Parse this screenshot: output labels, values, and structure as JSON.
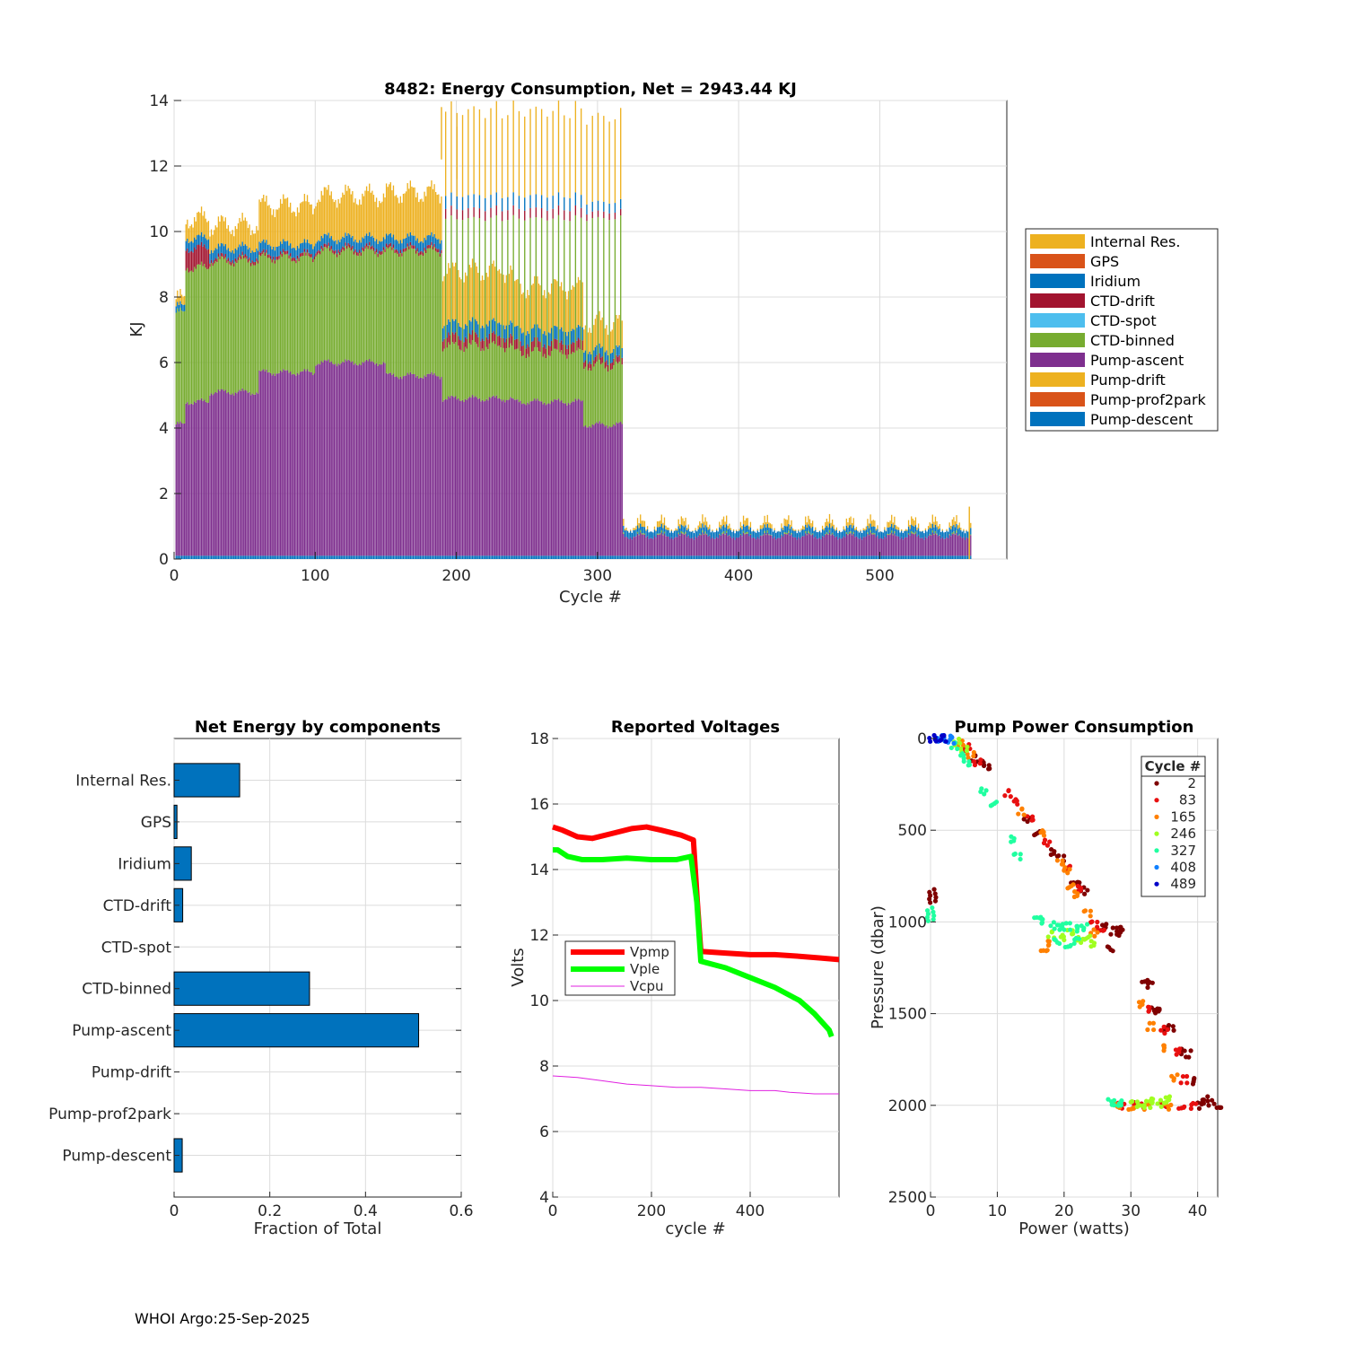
{
  "footer": "WHOI Argo:25-Sep-2025",
  "colors": {
    "internal_res": "#EDB120",
    "gps": "#D95319",
    "iridium": "#0072BD",
    "ctd_drift": "#A2142F",
    "ctd_spot": "#4DBEEE",
    "ctd_binned": "#77AC30",
    "pump_ascent": "#7E2F8E",
    "pump_drift": "#EDB120",
    "pump_prof2park": "#D95319",
    "pump_descent": "#0072BD"
  },
  "chart_data": [
    {
      "id": "energy",
      "type": "bar",
      "stacked": true,
      "title": "8482: Energy Consumption,  Net = 2943.44 KJ",
      "xlabel": "Cycle #",
      "ylabel": "KJ",
      "xlim": [
        0,
        590
      ],
      "ylim": [
        0,
        14
      ],
      "xticks": [
        0,
        100,
        200,
        300,
        400,
        500
      ],
      "yticks": [
        0,
        2,
        4,
        6,
        8,
        10,
        12,
        14
      ],
      "grid": true,
      "legend_position": "outside-right",
      "legend": [
        "Internal Res.",
        "GPS",
        "Iridium",
        "CTD-drift",
        "CTD-spot",
        "CTD-binned",
        "Pump-ascent",
        "Pump-drift",
        "Pump-prof2park",
        "Pump-descent"
      ],
      "segments": [
        {
          "x": [
            1,
            8
          ],
          "pump_ascent": 4.0,
          "ctd_binned": 3.4,
          "ctd_drift": 0.0,
          "iridium": 0.2,
          "internal_res": 0.2
        },
        {
          "x": [
            8,
            25
          ],
          "pump_ascent": 4.7,
          "ctd_binned": 4.1,
          "ctd_drift": 0.6,
          "iridium": 0.3,
          "internal_res": 0.6
        },
        {
          "x": [
            25,
            60
          ],
          "pump_ascent": 5.0,
          "ctd_binned": 4.0,
          "ctd_drift": 0.1,
          "iridium": 0.3,
          "internal_res": 0.7
        },
        {
          "x": [
            60,
            100
          ],
          "pump_ascent": 5.6,
          "ctd_binned": 3.5,
          "ctd_drift": 0.1,
          "iridium": 0.3,
          "internal_res": 1.2
        },
        {
          "x": [
            100,
            150
          ],
          "pump_ascent": 5.9,
          "ctd_binned": 3.4,
          "ctd_drift": 0.1,
          "iridium": 0.3,
          "internal_res": 1.3
        },
        {
          "x": [
            150,
            190
          ],
          "pump_ascent": 5.5,
          "ctd_binned": 3.8,
          "ctd_drift": 0.1,
          "iridium": 0.3,
          "internal_res": 1.4
        },
        {
          "x": [
            190,
            240
          ],
          "pump_ascent": 4.8,
          "ctd_binned": 1.6,
          "ctd_drift": 0.3,
          "iridium": 0.4,
          "internal_res": 1.6
        },
        {
          "x": [
            240,
            290
          ],
          "pump_ascent": 4.7,
          "ctd_binned": 1.5,
          "ctd_drift": 0.3,
          "iridium": 0.4,
          "internal_res": 1.3
        },
        {
          "x": [
            290,
            318
          ],
          "pump_ascent": 4.0,
          "ctd_binned": 1.8,
          "ctd_drift": 0.2,
          "iridium": 0.3,
          "internal_res": 0.8
        },
        {
          "x": [
            318,
            565
          ],
          "pump_ascent": 0.6,
          "ctd_binned": 0.0,
          "ctd_drift": 0.0,
          "iridium": 0.2,
          "internal_res": 0.1
        }
      ],
      "pump_descent": 0.1,
      "alternate_cycles": {
        "x": [
          190,
          318
        ],
        "total": 10.5,
        "ctd_binned_total": 10.3
      },
      "peaks": [
        {
          "x": 189,
          "y": 13.8
        },
        {
          "x": 200,
          "y": 13.2
        },
        {
          "x": 563,
          "y": 1.6
        }
      ]
    },
    {
      "id": "components",
      "type": "bar",
      "orientation": "horizontal",
      "title": "Net Energy by components",
      "xlabel": "Fraction of Total",
      "xlim": [
        0,
        0.6
      ],
      "xticks": [
        0,
        0.2,
        0.4,
        0.6
      ],
      "xtick_labels": [
        "0",
        "0.2",
        "0.4",
        "0.6"
      ],
      "grid": true,
      "categories": [
        "Internal Res.",
        "GPS",
        "Iridium",
        "CTD-drift",
        "CTD-spot",
        "CTD-binned",
        "Pump-ascent",
        "Pump-drift",
        "Pump-prof2park",
        "Pump-descent"
      ],
      "values": [
        0.137,
        0.006,
        0.036,
        0.018,
        0.0,
        0.283,
        0.511,
        0.0,
        0.0,
        0.017
      ],
      "bar_color": "#0072BD"
    },
    {
      "id": "voltages",
      "type": "line",
      "title": "Reported Voltages",
      "xlabel": "cycle #",
      "ylabel": "Volts",
      "xlim": [
        0,
        580
      ],
      "ylim": [
        4,
        18
      ],
      "xticks": [
        0,
        200,
        400
      ],
      "yticks": [
        4,
        6,
        8,
        10,
        12,
        14,
        16,
        18
      ],
      "grid": true,
      "legend_position": "middle-left",
      "series": [
        {
          "name": "Vpmp",
          "color": "#FF0000",
          "width": 6,
          "x": [
            0,
            20,
            50,
            80,
            120,
            160,
            190,
            220,
            260,
            285,
            293,
            300,
            350,
            400,
            450,
            500,
            540,
            580
          ],
          "y": [
            15.3,
            15.2,
            15.0,
            14.95,
            15.1,
            15.25,
            15.3,
            15.2,
            15.05,
            14.9,
            13.0,
            11.5,
            11.45,
            11.4,
            11.4,
            11.35,
            11.3,
            11.25
          ]
        },
        {
          "name": "Vple",
          "color": "#00FF00",
          "width": 6,
          "x": [
            0,
            10,
            30,
            60,
            100,
            150,
            200,
            250,
            280,
            292,
            300,
            350,
            400,
            450,
            500,
            530,
            560,
            565
          ],
          "y": [
            14.6,
            14.6,
            14.4,
            14.3,
            14.3,
            14.35,
            14.3,
            14.3,
            14.4,
            13.0,
            11.2,
            11.0,
            10.7,
            10.4,
            10.0,
            9.6,
            9.1,
            8.9
          ]
        },
        {
          "name": "Vcpu",
          "color": "#E020E0",
          "width": 1,
          "x": [
            0,
            50,
            100,
            150,
            200,
            250,
            300,
            350,
            400,
            450,
            480,
            530,
            580
          ],
          "y": [
            7.7,
            7.65,
            7.55,
            7.45,
            7.4,
            7.35,
            7.35,
            7.3,
            7.25,
            7.25,
            7.2,
            7.15,
            7.15
          ]
        }
      ]
    },
    {
      "id": "pump",
      "type": "scatter",
      "title": "Pump Power Consumption",
      "xlabel": "Power (watts)",
      "ylabel": "Pressure (dbar)",
      "xlim": [
        0,
        43
      ],
      "ylim": [
        0,
        2500
      ],
      "y_reversed": true,
      "xticks": [
        0,
        10,
        20,
        30,
        40
      ],
      "yticks": [
        0,
        500,
        1000,
        1500,
        2000,
        2500
      ],
      "grid": true,
      "legend_title": "Cycle #",
      "legend_position": "top-right",
      "legend": [
        {
          "label": "2",
          "color": "#7F0000"
        },
        {
          "label": "83",
          "color": "#E81010"
        },
        {
          "label": "165",
          "color": "#FF8000"
        },
        {
          "label": "246",
          "color": "#A0FF20"
        },
        {
          "label": "327",
          "color": "#20FFA0"
        },
        {
          "label": "408",
          "color": "#1080FF"
        },
        {
          "label": "489",
          "color": "#0000C8"
        }
      ],
      "clusters": [
        {
          "color": "#7F0000",
          "points": [
            [
              0.3,
              840
            ],
            [
              0.3,
              880
            ],
            [
              6.5,
              110
            ],
            [
              7.5,
              140
            ],
            [
              8.5,
              160
            ],
            [
              14.5,
              440
            ],
            [
              16.0,
              510
            ],
            [
              18.5,
              620
            ],
            [
              19.5,
              650
            ],
            [
              21.5,
              770
            ],
            [
              22.5,
              800
            ],
            [
              23.0,
              830
            ],
            [
              26.0,
              1030
            ],
            [
              27.5,
              1050
            ],
            [
              28.0,
              1045
            ],
            [
              28.3,
              1060
            ],
            [
              27.0,
              1150
            ],
            [
              32.0,
              1310
            ],
            [
              33.0,
              1340
            ],
            [
              33.5,
              1480
            ],
            [
              34.0,
              1470
            ],
            [
              35.5,
              1590
            ],
            [
              36.0,
              1580
            ],
            [
              37.5,
              1710
            ],
            [
              38.5,
              1720
            ],
            [
              39.0,
              1870
            ],
            [
              41.0,
              1970
            ],
            [
              42.0,
              1990
            ],
            [
              43.0,
              1995
            ],
            [
              40.5,
              2000
            ]
          ]
        },
        {
          "color": "#E81010",
          "points": [
            [
              5.5,
              50
            ],
            [
              7.0,
              130
            ],
            [
              11.5,
              300
            ],
            [
              12.5,
              350
            ],
            [
              15.0,
              440
            ],
            [
              17.5,
              570
            ],
            [
              20.5,
              700
            ],
            [
              22.5,
              820
            ],
            [
              24.5,
              1010
            ],
            [
              25.5,
              1030
            ],
            [
              33.0,
              1480
            ],
            [
              35.0,
              1590
            ],
            [
              37.0,
              1710
            ],
            [
              38.0,
              1860
            ],
            [
              30.0,
              2000
            ],
            [
              32.0,
              2000
            ],
            [
              35.0,
              2000
            ],
            [
              37.5,
              2000
            ],
            [
              39.5,
              2000
            ],
            [
              28.5,
              2000
            ]
          ]
        },
        {
          "color": "#FF8000",
          "points": [
            [
              4.5,
              30
            ],
            [
              6.0,
              90
            ],
            [
              13.5,
              400
            ],
            [
              16.5,
              520
            ],
            [
              19.5,
              680
            ],
            [
              20.5,
              720
            ],
            [
              21.0,
              800
            ],
            [
              22.0,
              850
            ],
            [
              23.5,
              950
            ],
            [
              17.0,
              1140
            ],
            [
              18.0,
              1120
            ],
            [
              24.5,
              1060
            ],
            [
              31.5,
              1450
            ],
            [
              33.0,
              1570
            ],
            [
              34.5,
              1690
            ],
            [
              36.5,
              1850
            ],
            [
              28.0,
              2005
            ],
            [
              30.0,
              2005
            ],
            [
              32.5,
              2005
            ],
            [
              35.5,
              2005
            ]
          ]
        },
        {
          "color": "#A0FF20",
          "points": [
            [
              4.0,
              20
            ],
            [
              5.0,
              60
            ],
            [
              18.0,
              1070
            ],
            [
              19.5,
              1090
            ],
            [
              21.0,
              1060
            ],
            [
              22.5,
              1100
            ],
            [
              23.5,
              1080
            ],
            [
              24.5,
              1120
            ],
            [
              30.5,
              1990
            ],
            [
              31.5,
              1985
            ],
            [
              33.5,
              1980
            ],
            [
              34.5,
              1990
            ],
            [
              35.5,
              1970
            ],
            [
              32.5,
              1995
            ]
          ]
        },
        {
          "color": "#20FFA0",
          "points": [
            [
              0.0,
              940
            ],
            [
              0.0,
              980
            ],
            [
              3.5,
              40
            ],
            [
              4.5,
              100
            ],
            [
              5.5,
              140
            ],
            [
              8.0,
              290
            ],
            [
              9.5,
              350
            ],
            [
              12.5,
              550
            ],
            [
              13.0,
              640
            ],
            [
              16.0,
              960
            ],
            [
              17.0,
              1000
            ],
            [
              18.5,
              1020
            ],
            [
              19.5,
              1030
            ],
            [
              20.5,
              1025
            ],
            [
              21.5,
              1040
            ],
            [
              23.0,
              1030
            ],
            [
              19.0,
              1110
            ],
            [
              20.5,
              1120
            ],
            [
              22.0,
              1100
            ],
            [
              27.0,
              1980
            ],
            [
              28.0,
              1985
            ],
            [
              29.0,
              1990
            ]
          ]
        },
        {
          "color": "#1080FF",
          "points": [
            [
              1.5,
              0
            ],
            [
              2.5,
              0
            ],
            [
              3.0,
              10
            ]
          ]
        },
        {
          "color": "#0000C8",
          "points": [
            [
              0.3,
              0
            ],
            [
              1.2,
              0
            ],
            [
              1.8,
              0
            ]
          ]
        }
      ]
    }
  ]
}
